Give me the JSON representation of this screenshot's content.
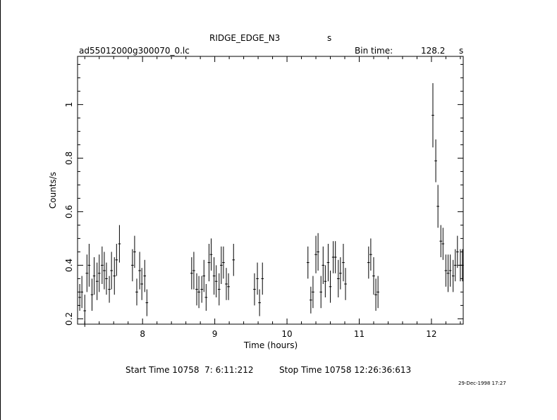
{
  "header": {
    "object": "RIDGE_EDGE_N3",
    "object_suffix": "s",
    "file": "ad55012000g300070_0.lc",
    "bin_label": "Bin time:",
    "bin_value": "128.2",
    "bin_unit": "s"
  },
  "footer": {
    "start_time": "Start Time 10758  7: 6:11:212",
    "stop_time": "Stop Time 10758 12:26:36:613",
    "date_stamp": "29-Dec-1998 17:27"
  },
  "chart_data": {
    "type": "scatter",
    "title": "RIDGE_EDGE_N3",
    "xlabel": "Time (hours)",
    "ylabel": "Counts/s",
    "xlim": [
      7.1,
      12.44
    ],
    "ylim": [
      0.18,
      1.18
    ],
    "xticks": [
      8,
      9,
      10,
      11,
      12
    ],
    "yticks": [
      0.2,
      0.4,
      0.6,
      0.8,
      1
    ],
    "ytick_labels": [
      "0.2",
      "0.4",
      "0.6",
      "0.8",
      "1"
    ],
    "grid": false,
    "xerr": 0.0178,
    "series": [
      {
        "x": [
          7.13,
          7.16,
          7.2,
          7.23,
          7.26,
          7.3,
          7.33,
          7.37,
          7.4,
          7.44,
          7.47,
          7.5,
          7.54,
          7.57,
          7.61,
          7.64,
          7.68,
          7.86,
          7.89,
          7.92,
          7.96,
          7.99,
          8.03,
          8.06,
          8.68,
          8.71,
          8.75,
          8.78,
          8.82,
          8.85,
          8.88,
          8.92,
          8.95,
          8.99,
          9.02,
          9.06,
          9.09,
          9.12,
          9.16,
          9.19,
          9.26,
          9.55,
          9.59,
          9.62,
          9.66,
          10.29,
          10.33,
          10.36,
          10.4,
          10.43,
          10.47,
          10.5,
          10.53,
          10.57,
          10.6,
          10.64,
          10.67,
          10.71,
          10.74,
          10.78,
          10.81,
          11.13,
          11.16,
          11.2,
          11.23,
          11.26,
          12.02,
          12.06,
          12.09,
          12.13,
          12.16,
          12.2,
          12.23,
          12.26,
          12.3,
          12.33,
          12.36,
          12.4,
          12.43
        ],
        "y": [
          0.28,
          0.3,
          0.23,
          0.37,
          0.4,
          0.29,
          0.36,
          0.34,
          0.37,
          0.4,
          0.38,
          0.35,
          0.31,
          0.38,
          0.36,
          0.42,
          0.48,
          0.4,
          0.45,
          0.3,
          0.38,
          0.33,
          0.36,
          0.26,
          0.37,
          0.38,
          0.31,
          0.3,
          0.31,
          0.36,
          0.28,
          0.41,
          0.44,
          0.36,
          0.34,
          0.31,
          0.4,
          0.41,
          0.33,
          0.32,
          0.42,
          0.31,
          0.35,
          0.26,
          0.35,
          0.41,
          0.27,
          0.3,
          0.44,
          0.45,
          0.3,
          0.4,
          0.34,
          0.41,
          0.32,
          0.43,
          0.43,
          0.35,
          0.37,
          0.41,
          0.33,
          0.41,
          0.44,
          0.36,
          0.29,
          0.3,
          0.96,
          0.79,
          0.62,
          0.49,
          0.48,
          0.38,
          0.37,
          0.38,
          0.36,
          0.4,
          0.45,
          0.4,
          0.4
        ],
        "yerr": [
          0.05,
          0.06,
          0.06,
          0.07,
          0.08,
          0.06,
          0.07,
          0.07,
          0.07,
          0.07,
          0.07,
          0.06,
          0.05,
          0.07,
          0.07,
          0.06,
          0.07,
          0.06,
          0.06,
          0.05,
          0.07,
          0.06,
          0.06,
          0.05,
          0.06,
          0.07,
          0.06,
          0.06,
          0.05,
          0.06,
          0.05,
          0.07,
          0.06,
          0.07,
          0.06,
          0.06,
          0.07,
          0.06,
          0.06,
          0.05,
          0.06,
          0.06,
          0.06,
          0.05,
          0.06,
          0.06,
          0.05,
          0.06,
          0.07,
          0.07,
          0.06,
          0.07,
          0.06,
          0.07,
          0.06,
          0.06,
          0.06,
          0.07,
          0.06,
          0.07,
          0.06,
          0.06,
          0.06,
          0.07,
          0.06,
          0.06,
          0.12,
          0.08,
          0.08,
          0.06,
          0.06,
          0.06,
          0.07,
          0.06,
          0.06,
          0.06,
          0.06,
          0.06,
          0.06
        ]
      }
    ]
  }
}
